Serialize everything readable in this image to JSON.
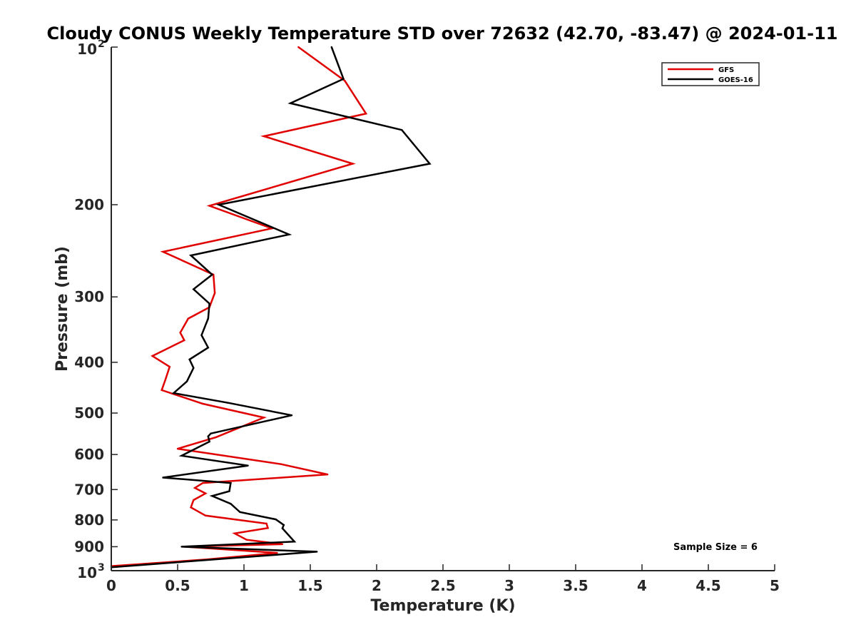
{
  "chart_data": {
    "type": "line",
    "title": "Cloudy CONUS Weekly Temperature STD over 72632 (42.70, -83.47) @ 2024-01-11",
    "xlabel": "Temperature (K)",
    "ylabel": "Pressure (mb)",
    "xlim": [
      0,
      5
    ],
    "ylim": [
      100,
      1000
    ],
    "y_scale": "log",
    "y_reversed": true,
    "x_ticks": [
      0,
      0.5,
      1,
      1.5,
      2,
      2.5,
      3,
      3.5,
      4,
      4.5,
      5
    ],
    "x_tick_labels": [
      "0",
      "0.5",
      "1",
      "1.5",
      "2",
      "2.5",
      "3",
      "3.5",
      "4",
      "4.5",
      "5"
    ],
    "y_ticks": [
      100,
      200,
      300,
      400,
      500,
      600,
      700,
      800,
      900,
      1000
    ],
    "y_tick_labels": [
      {
        "base": "10",
        "exp": "2"
      },
      {
        "base": "200",
        "exp": ""
      },
      {
        "base": "300",
        "exp": ""
      },
      {
        "base": "400",
        "exp": ""
      },
      {
        "base": "500",
        "exp": ""
      },
      {
        "base": "600",
        "exp": ""
      },
      {
        "base": "700",
        "exp": ""
      },
      {
        "base": "800",
        "exp": ""
      },
      {
        "base": "900",
        "exp": ""
      },
      {
        "base": "10",
        "exp": "3"
      }
    ],
    "grid": false,
    "legend_position": "top-right",
    "annotation": "Sample Size = 6",
    "series": [
      {
        "name": "GFS",
        "color": "#e00000",
        "points": [
          [
            1.41,
            100
          ],
          [
            1.76,
            116
          ],
          [
            1.92,
            134
          ],
          [
            1.15,
            148
          ],
          [
            1.82,
            167
          ],
          [
            0.74,
            201
          ],
          [
            1.21,
            222
          ],
          [
            0.39,
            246
          ],
          [
            0.77,
            272
          ],
          [
            0.78,
            295
          ],
          [
            0.74,
            314
          ],
          [
            0.58,
            330
          ],
          [
            0.52,
            351
          ],
          [
            0.55,
            363
          ],
          [
            0.31,
            389
          ],
          [
            0.44,
            408
          ],
          [
            0.41,
            430
          ],
          [
            0.38,
            452
          ],
          [
            0.69,
            480
          ],
          [
            1.15,
            510
          ],
          [
            0.79,
            556
          ],
          [
            0.5,
            585
          ],
          [
            1.28,
            626
          ],
          [
            1.63,
            655
          ],
          [
            0.69,
            680
          ],
          [
            0.63,
            695
          ],
          [
            0.71,
            712
          ],
          [
            0.62,
            733
          ],
          [
            0.6,
            757
          ],
          [
            0.71,
            785
          ],
          [
            1.17,
            813
          ],
          [
            1.18,
            829
          ],
          [
            0.93,
            849
          ],
          [
            1.02,
            873
          ],
          [
            1.29,
            890
          ],
          [
            0.55,
            900
          ],
          [
            1.25,
            925
          ],
          [
            0.72,
            952
          ],
          [
            0.0,
            980
          ]
        ]
      },
      {
        "name": "GOES-16",
        "color": "#000000",
        "points": [
          [
            1.66,
            100
          ],
          [
            1.75,
            115
          ],
          [
            1.35,
            128
          ],
          [
            2.19,
            144
          ],
          [
            2.4,
            167
          ],
          [
            0.81,
            200
          ],
          [
            1.34,
            228
          ],
          [
            0.6,
            250
          ],
          [
            0.76,
            272
          ],
          [
            0.62,
            290
          ],
          [
            0.74,
            309
          ],
          [
            0.73,
            330
          ],
          [
            0.68,
            355
          ],
          [
            0.73,
            375
          ],
          [
            0.59,
            395
          ],
          [
            0.62,
            410
          ],
          [
            0.57,
            435
          ],
          [
            0.47,
            458
          ],
          [
            0.88,
            478
          ],
          [
            1.36,
            505
          ],
          [
            0.75,
            547
          ],
          [
            0.73,
            554
          ],
          [
            0.74,
            567
          ],
          [
            0.53,
            603
          ],
          [
            1.03,
            630
          ],
          [
            0.39,
            664
          ],
          [
            0.9,
            680
          ],
          [
            0.89,
            705
          ],
          [
            0.76,
            720
          ],
          [
            0.9,
            745
          ],
          [
            0.97,
            773
          ],
          [
            1.24,
            798
          ],
          [
            1.3,
            818
          ],
          [
            1.29,
            830
          ],
          [
            1.38,
            880
          ],
          [
            0.53,
            900
          ],
          [
            1.55,
            920
          ],
          [
            0.0,
            985
          ]
        ]
      }
    ]
  }
}
